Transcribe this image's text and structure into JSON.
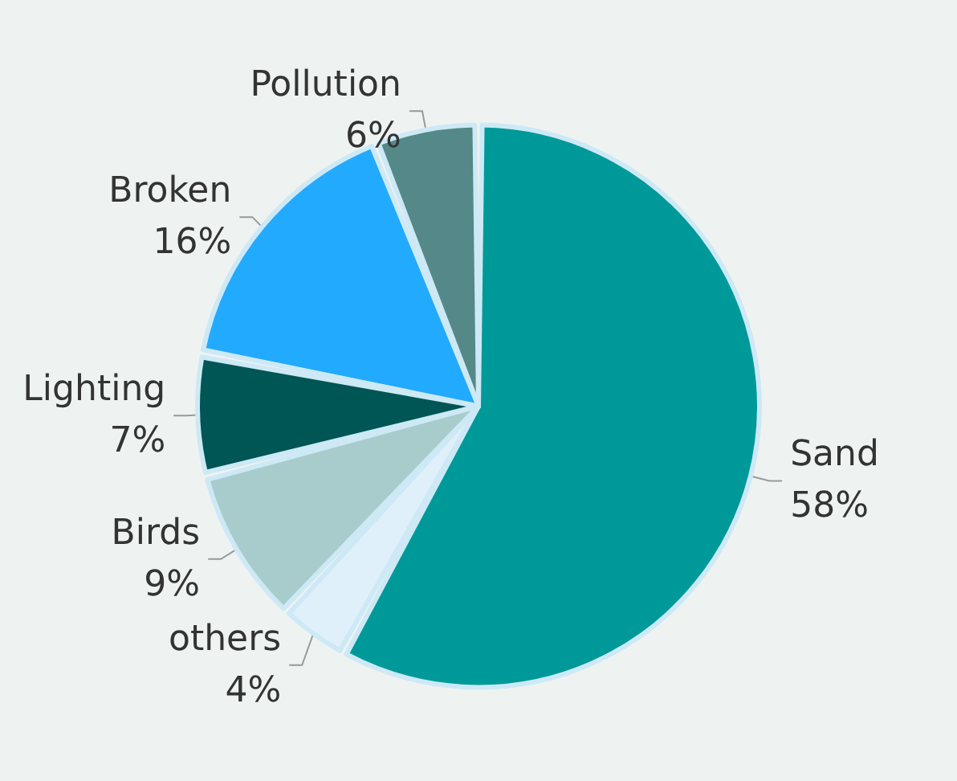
{
  "chart_data": {
    "type": "pie",
    "categories": [
      "Sand",
      "others",
      "Birds",
      "Lighting",
      "Broken",
      "Pollution"
    ],
    "values": [
      58,
      4,
      9,
      7,
      16,
      6
    ],
    "value_labels": [
      "58%",
      "4%",
      "9%",
      "7%",
      "16%",
      "6%"
    ],
    "colors": [
      "#009999",
      "#dff0fb",
      "#a8cccc",
      "#005555",
      "#22aaff",
      "#558888"
    ]
  }
}
